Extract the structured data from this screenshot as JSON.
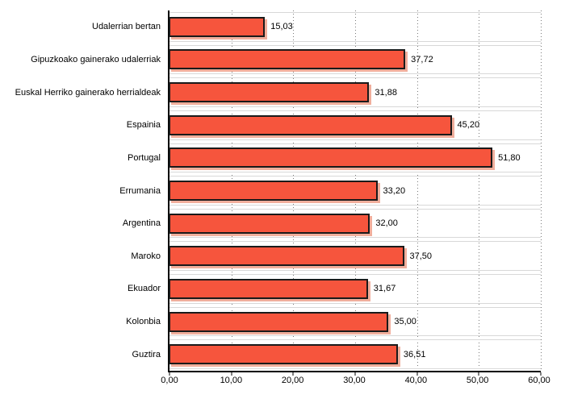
{
  "chart_data": {
    "type": "bar",
    "orientation": "horizontal",
    "title": "",
    "xlabel": "",
    "ylabel": "",
    "xlim": [
      0,
      60
    ],
    "grid": "vertical-dotted",
    "legend": "none",
    "x_tick_labels": [
      "0,00",
      "10,00",
      "20,00",
      "30,00",
      "40,00",
      "50,00",
      "60,00"
    ],
    "categories": [
      "Udalerrian bertan",
      "Gipuzkoako gainerako udalerriak",
      "Euskal Herriko gainerako herrialdeak",
      "Espainia",
      "Portugal",
      "Errumania",
      "Argentina",
      "Maroko",
      "Ekuador",
      "Kolonbia",
      "Guztira"
    ],
    "values": [
      15.03,
      37.72,
      31.88,
      45.2,
      51.8,
      33.2,
      32.0,
      37.5,
      31.67,
      35.0,
      36.51
    ],
    "value_labels": [
      "15,03",
      "37,72",
      "31,88",
      "45,20",
      "51,80",
      "33,20",
      "32,00",
      "37,50",
      "31,67",
      "35,00",
      "36,51"
    ],
    "colors": {
      "bar_fill": "#F6553D",
      "bar_border": "#1A1A1A",
      "bar_shadow": "#F0AE9C",
      "category_gridline": "#D8D8D8",
      "value_gridline": "#7A7A7A",
      "axis_line": "#000000",
      "text": "#000000",
      "background": "#FFFFFF"
    }
  }
}
